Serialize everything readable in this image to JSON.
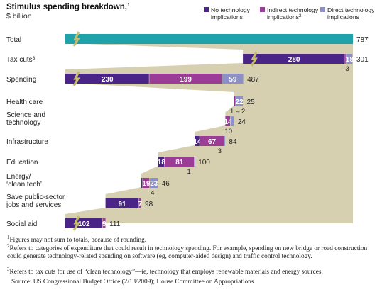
{
  "title": "Stimulus spending breakdown,",
  "title_note": "1",
  "subtitle": "$ billion",
  "colors": {
    "none": "#4a2487",
    "indirect": "#9b3d97",
    "direct": "#8c8fc8",
    "total": "#1fa3aa",
    "background": "#d6d0b0",
    "break": "#c4bc6e"
  },
  "legend": [
    {
      "key": "none",
      "label1": "No technology",
      "label2": "implications",
      "note": ""
    },
    {
      "key": "indirect",
      "label1": "Indirect technology",
      "label2": "implications",
      "note": "2"
    },
    {
      "key": "direct",
      "label1": "Direct technology",
      "label2": "implications",
      "note": ""
    }
  ],
  "chart_data": {
    "type": "bar",
    "subtype": "waterfall",
    "title": "Stimulus spending breakdown,",
    "subtitle": "$ billion",
    "series_names": [
      "No technology implications",
      "Indirect technology implications",
      "Direct technology implications"
    ],
    "rows": [
      {
        "label": "Total",
        "label2": "",
        "note": "",
        "start": 0,
        "none": 787,
        "indirect": 0,
        "direct": 0,
        "total": "787",
        "is_total": true,
        "broken": true,
        "inside": [
          "",
          "",
          ""
        ],
        "below": ""
      },
      {
        "label": "Tax cuts",
        "label2": "",
        "note": "3",
        "start": 486,
        "none": 280,
        "indirect": 3,
        "direct": 18,
        "total": "301",
        "broken": true,
        "inside": [
          "280",
          "",
          "18"
        ],
        "below": "3"
      },
      {
        "label": "Spending",
        "label2": "",
        "note": "",
        "start": 0,
        "none": 230,
        "indirect": 199,
        "direct": 59,
        "total": "487",
        "broken": true,
        "inside": [
          "230",
          "199",
          "59"
        ],
        "below": ""
      },
      {
        "label": "Health care",
        "label2": "",
        "note": "",
        "start": 462,
        "none": 1,
        "indirect": 2,
        "direct": 22,
        "total": "25",
        "inside": [
          "",
          "",
          "22"
        ],
        "below": "1 – 2"
      },
      {
        "label": "Science and",
        "label2": "technology",
        "note": "",
        "start": 438,
        "none": 0,
        "indirect": 14,
        "direct": 10,
        "total": "24",
        "inside": [
          "",
          "14",
          ""
        ],
        "below": "10"
      },
      {
        "label": "Infrastructure",
        "label2": "",
        "note": "",
        "start": 354,
        "none": 14,
        "indirect": 67,
        "direct": 3,
        "total": "84",
        "inside": [
          "14",
          "67",
          ""
        ],
        "below": "3"
      },
      {
        "label": "Education",
        "label2": "",
        "note": "",
        "start": 254,
        "none": 18,
        "indirect": 81,
        "direct": 1,
        "total": "100",
        "inside": [
          "18",
          "81",
          ""
        ],
        "below": "1"
      },
      {
        "label": "Energy/",
        "label2": "‘clean tech’",
        "note": "",
        "start": 208,
        "none": 4,
        "indirect": 19,
        "direct": 23,
        "total": "46",
        "inside": [
          "",
          "19",
          "23"
        ],
        "below": "4"
      },
      {
        "label": "Save public-sector",
        "label2": "jobs and services",
        "note": "",
        "start": 110,
        "none": 91,
        "indirect": 7,
        "direct": 0,
        "total": "98",
        "inside": [
          "91",
          "7",
          ""
        ],
        "below": ""
      },
      {
        "label": "Social aid",
        "label2": "",
        "note": "",
        "start": 0,
        "none": 102,
        "indirect": 9,
        "direct": 0,
        "total": "111",
        "broken": true,
        "inside": [
          "102",
          "9",
          ""
        ],
        "below": ""
      }
    ]
  },
  "footnotes": [
    {
      "num": "1",
      "text": "Figures may not sum to totals, because of rounding."
    },
    {
      "num": "2",
      "text": "Refers to categories of expenditure that could result in technology spending. For example, spending on new bridge or road construction could generate technology-related spending on software (eg, computer-aided design) and traffic control technology."
    },
    {
      "num": "3",
      "text": "Refers to tax cuts for use of “clean technology”—ie, technology that employs renewable materials and energy sources."
    }
  ],
  "source": "Source: US Congressional Budget Office (2/13/2009); House Committee on Appropriations"
}
